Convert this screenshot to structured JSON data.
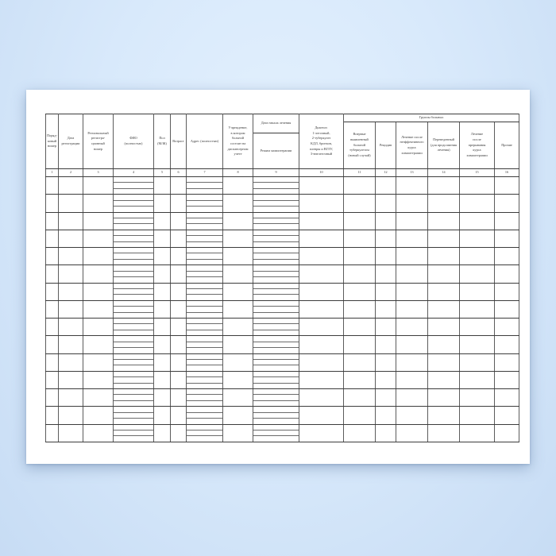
{
  "document": {
    "kind": "registration-journal-form",
    "language": "ru"
  },
  "colors": {
    "background_top": "#e4f1fd",
    "background_bottom": "#c7dcf4",
    "page": "#ffffff",
    "grid_line": "#3c3c3c",
    "sub_line": "#6b6b6b",
    "text": "#3b3b3b"
  },
  "table": {
    "group_headers": {
      "treatment_start": "Дата начала лечения",
      "patient_groups": "Группы больных"
    },
    "columns": [
      {
        "num": "1",
        "label": "Поряд-\nковый\nномер"
      },
      {
        "num": "2",
        "label": "Дата\nрегистрации"
      },
      {
        "num": "3",
        "label": "Региональный\nрегистра-\nционный\nномер"
      },
      {
        "num": "4",
        "label": "ФИО\n(полностью)"
      },
      {
        "num": "5",
        "label": "Пол\n(М/Ж)"
      },
      {
        "num": "6",
        "label": "Возраст"
      },
      {
        "num": "7",
        "label": "Адрес (полностью)"
      },
      {
        "num": "8",
        "label": "Учреждение,\nв котором\nбольной\nсостоит на\nдиспансерном\nучете"
      },
      {
        "num": "9",
        "label": "Режим химиотерапии"
      },
      {
        "num": "10",
        "label": "Диагноз:\n1-легочный,\n2-туберкулез\nКДЛ, бронхов,\nплевры и ВГЛУ,\n3-внелегочный"
      },
      {
        "num": "11",
        "label": "Впервые\nвыявленный\nбольной\nтуберкулезом\n(новый случай)"
      },
      {
        "num": "12",
        "label": "Рецидив"
      },
      {
        "num": "13",
        "label": "Лечение после\nнеэффективного\nкурса\nхимиотерапии"
      },
      {
        "num": "14",
        "label": "Переведенный\n(для продолжения\nлечения)"
      },
      {
        "num": "15",
        "label": "Лечение\nпосле\nпрерывания\nкурса\nхимиотерапии"
      },
      {
        "num": "16",
        "label": "Прочие"
      }
    ],
    "body": {
      "row_count": 15,
      "split_columns": [
        4,
        7,
        9
      ],
      "sub_rows_per_cell": 3
    }
  }
}
